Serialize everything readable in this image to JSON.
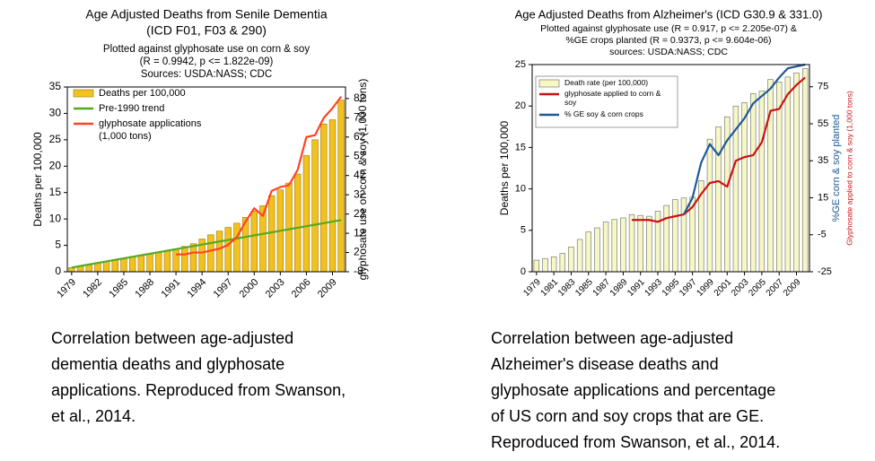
{
  "chart_data": [
    {
      "type": "bar",
      "title": [
        "Age Adjusted Deaths from Senile Dementia",
        "(ICD F01, F03 & 290)"
      ],
      "subtitle": [
        "Plotted against glyphosate use on corn & soy",
        "(R = 0.9942, p <= 1.822e-09)",
        "Sources: USDA:NASS; CDC"
      ],
      "ylabel": "Deaths per 100,000",
      "y2label": [
        "glyphosate use on corn & soy (1,000 tons)"
      ],
      "categories": [
        "1979",
        null,
        null,
        "1982",
        null,
        null,
        "1985",
        null,
        null,
        "1988",
        null,
        null,
        "1991",
        null,
        null,
        "1994",
        null,
        null,
        "1997",
        null,
        null,
        "2000",
        null,
        null,
        "2003",
        null,
        null,
        "2006",
        null,
        null,
        "2009",
        null
      ],
      "series": [
        {
          "name": "Deaths per 100,000",
          "type": "bar",
          "color": "#f2c11d",
          "values": [
            0.8,
            1.0,
            1.3,
            1.7,
            2.0,
            2.3,
            2.6,
            2.9,
            3.1,
            3.3,
            3.6,
            3.9,
            4.3,
            4.8,
            5.3,
            6.2,
            7.0,
            7.7,
            8.4,
            9.2,
            10.3,
            11.5,
            12.5,
            14.4,
            15.5,
            16.8,
            18.5,
            22.0,
            25.0,
            28.0,
            28.8,
            32.5
          ]
        },
        {
          "name": "Pre-1990 trend",
          "type": "line",
          "color": "#55aa22",
          "values": [
            0.8,
            1.09,
            1.38,
            1.67,
            1.96,
            2.25,
            2.54,
            2.83,
            3.12,
            3.41,
            3.7,
            3.99,
            4.28,
            4.57,
            4.86,
            5.15,
            5.44,
            5.73,
            6.02,
            6.31,
            6.6,
            6.89,
            7.18,
            7.47,
            7.76,
            8.05,
            8.34,
            8.63,
            8.92,
            9.21,
            9.5,
            9.79
          ]
        },
        {
          "name": "glyphosate applications (1,000 tons)",
          "type": "line",
          "color": "#ff4422",
          "axis": "y2",
          "values": [
            null,
            null,
            null,
            null,
            null,
            null,
            null,
            null,
            null,
            null,
            null,
            null,
            1,
            1,
            2,
            2,
            3,
            4,
            6,
            10,
            18,
            25,
            21,
            34,
            36,
            37,
            45,
            62,
            63,
            72,
            77,
            83
          ]
        }
      ],
      "ylim": [
        0,
        35
      ],
      "yticks": [
        0,
        5,
        10,
        15,
        20,
        25,
        30,
        35
      ],
      "y2lim": [
        -8,
        88
      ],
      "y2ticks": [
        -8,
        2,
        12,
        22,
        32,
        42,
        52,
        62,
        72,
        82
      ],
      "legend": "upper left",
      "grid": false,
      "caption": [
        "Correlation between age-adjusted",
        "dementia deaths and glyphosate",
        "applications. Reproduced from Swanson,",
        "et al., 2014."
      ]
    },
    {
      "type": "bar",
      "title": [
        "Age Adjusted Deaths from Alzheimer's (ICD G30.9 & 331.0)"
      ],
      "subtitle": [
        "Plotted against glyphosate use (R = 0.917, p <= 2.205e-07) &",
        "%GE crops planted (R = 0.9373, p <= 9.604e-06)",
        "sources: USDA:NASS; CDC"
      ],
      "ylabel": "Deaths per 100,000",
      "y2label": [
        "%GE corn & soy planted",
        "Glyphosate applied to corn & soy (1,000 tons)"
      ],
      "categories": [
        "1979",
        null,
        "1981",
        null,
        "1983",
        null,
        "1985",
        null,
        "1987",
        null,
        "1989",
        null,
        "1991",
        null,
        "1993",
        null,
        "1995",
        null,
        "1997",
        null,
        "1999",
        null,
        "2001",
        null,
        "2003",
        null,
        "2005",
        null,
        "2007",
        null,
        "2009",
        null
      ],
      "series": [
        {
          "name": "Death rate (per 100,000)",
          "type": "bar",
          "color": "#f7f7c6",
          "values": [
            1.4,
            1.6,
            1.8,
            2.2,
            3.0,
            3.9,
            4.8,
            5.3,
            6.0,
            6.3,
            6.5,
            6.9,
            6.8,
            6.7,
            7.3,
            8.0,
            8.7,
            8.9,
            9.0,
            11.0,
            16.0,
            17.5,
            18.7,
            20.0,
            20.4,
            21.5,
            21.8,
            23.2,
            22.9,
            23.5,
            24.0,
            24.5
          ]
        },
        {
          "name": "glyphosate applied to corn & soy",
          "type": "line",
          "color": "#cc1111",
          "axis": "y2",
          "values": [
            null,
            null,
            null,
            null,
            null,
            null,
            null,
            null,
            null,
            null,
            null,
            3,
            3,
            3,
            2,
            4,
            5,
            6,
            10,
            17,
            23,
            24,
            21,
            35,
            37,
            38,
            45,
            62,
            63,
            71,
            76,
            80
          ]
        },
        {
          "name": "% GE soy & corn crops",
          "type": "line",
          "color": "#1f5a96",
          "axis": "y2",
          "values": [
            null,
            null,
            null,
            null,
            null,
            null,
            null,
            null,
            null,
            null,
            null,
            null,
            null,
            null,
            null,
            null,
            null,
            6,
            15,
            34,
            44,
            38,
            46,
            52,
            58,
            66,
            70,
            74,
            80,
            85,
            86,
            87
          ]
        }
      ],
      "ylim": [
        0,
        25
      ],
      "yticks": [
        0,
        5,
        10,
        15,
        20,
        25
      ],
      "y2lim": [
        -25,
        87
      ],
      "y2ticks": [
        -25,
        -5,
        15,
        35,
        55,
        75
      ],
      "legend": "upper left",
      "grid": false,
      "caption": [
        "Correlation between age-adjusted",
        "Alzheimer's disease deaths and",
        "glyphosate applications and percentage",
        "of US corn and soy crops that are GE.",
        "Reproduced from Swanson, et al., 2014."
      ]
    }
  ]
}
